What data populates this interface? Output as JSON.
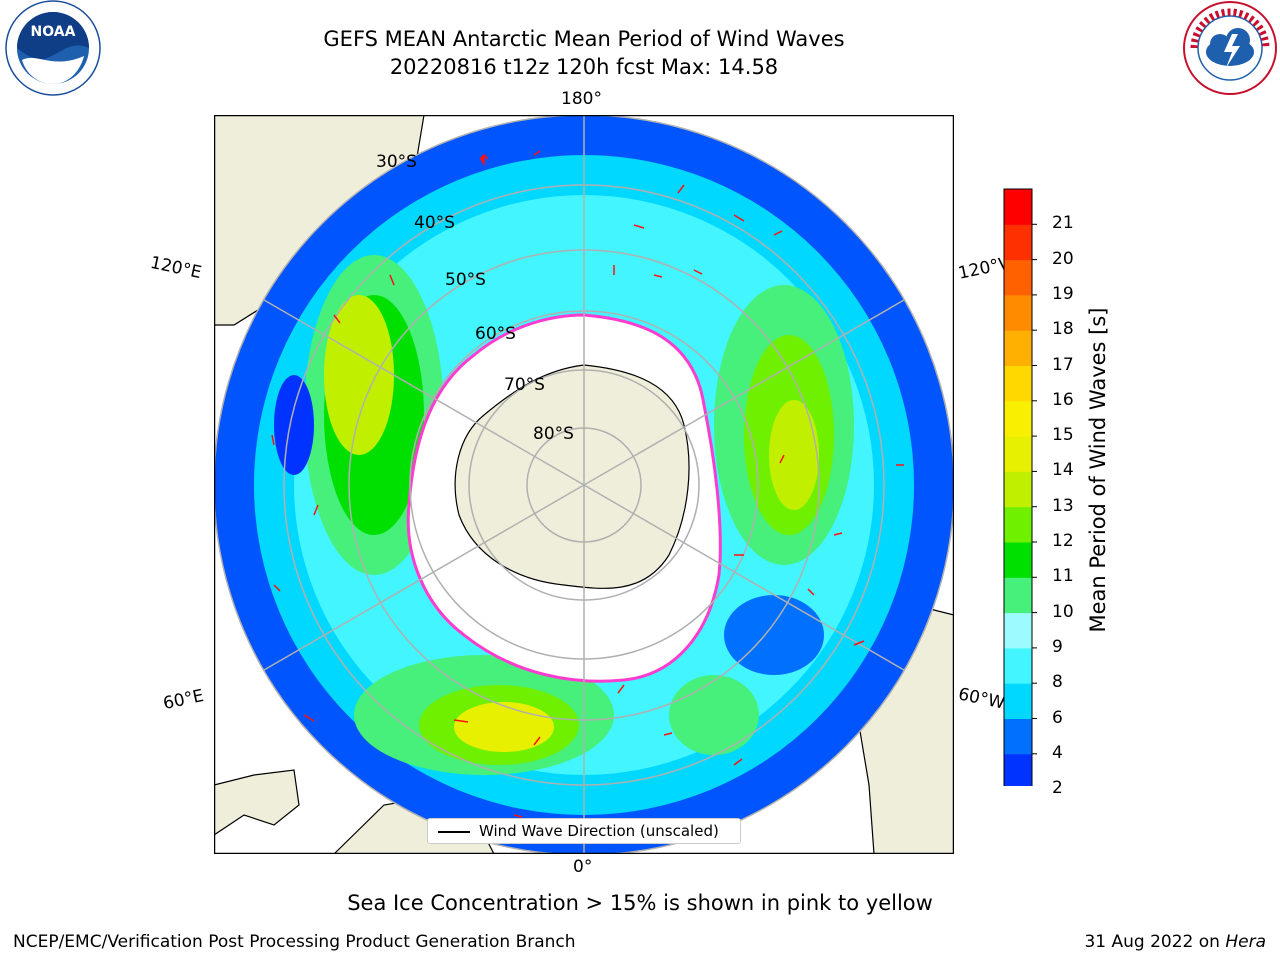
{
  "header": {
    "title_line1": "GEFS MEAN Antarctic Mean Period of Wind Waves",
    "title_line2": "20220816 t12z 120h fcst   Max: 14.58"
  },
  "logos": {
    "left": "NOAA",
    "left_ring_text": "NATIONAL OCEANIC AND ATMOSPHERIC ADMINISTRATION · U.S. DEPARTMENT OF COMMERCE",
    "right_ring_text": "NATIONAL WEATHER SERVICE"
  },
  "map": {
    "projection": "south-polar-stereographic",
    "latitude_labels": [
      "30°S",
      "40°S",
      "50°S",
      "60°S",
      "70°S",
      "80°S"
    ],
    "longitude_labels": {
      "top": "180°",
      "bottom": "0°",
      "left_upper": "120°E",
      "left_lower": "60°E",
      "right_upper": "120°W",
      "right_lower": "60°W"
    },
    "legend_label": "Wind Wave Direction (unscaled)"
  },
  "colorbar": {
    "label": "Mean Period of Wind Waves [s]",
    "ticks": [
      "2",
      "4",
      "6",
      "8",
      "9",
      "10",
      "11",
      "12",
      "13",
      "14",
      "15",
      "16",
      "17",
      "18",
      "19",
      "20",
      "21"
    ],
    "colors": [
      "#0033ff",
      "#0070ff",
      "#00d8ff",
      "#42f5ff",
      "#9dfbff",
      "#46f07a",
      "#00e000",
      "#6ef000",
      "#c0f000",
      "#e6f000",
      "#f8f000",
      "#ffd800",
      "#ffb000",
      "#ff8c00",
      "#ff6000",
      "#ff3000",
      "#ff0000"
    ],
    "extend": "min"
  },
  "sea_ice_note": "Sea Ice Concentration > 15% is shown in pink to yellow",
  "footer": {
    "left": "NCEP/EMC/Verification Post Processing Product Generation Branch",
    "right_date": "31 Aug 2022 on ",
    "right_machine": "Hera"
  }
}
